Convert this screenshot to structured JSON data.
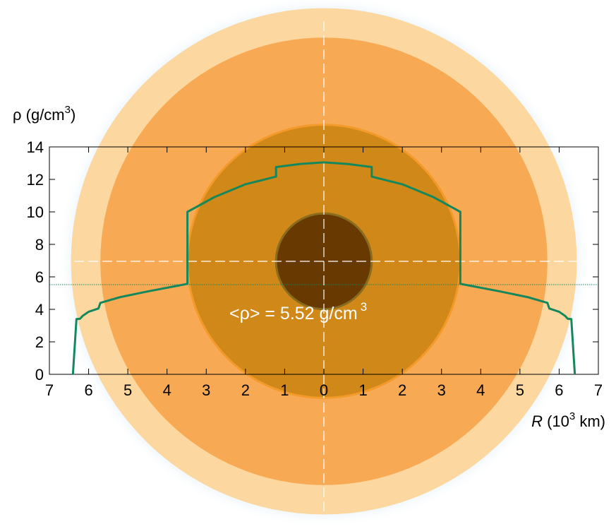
{
  "chart_data": {
    "type": "line",
    "y_label": "ρ (g/cm",
    "y_label_sup": "3",
    "y_label_end": ")",
    "x_label_var": "R",
    "x_label": " (10",
    "x_label_sup": "3",
    "x_label_end": " km)",
    "annotation": "<ρ> = 5.52 g/cm",
    "annotation_sup": "3",
    "mean_density": 5.52,
    "layers": [
      {
        "radius": 6.45,
        "color": "#fcd79f"
      },
      {
        "radius": 5.7,
        "color": "#f7a954"
      },
      {
        "radius": 3.48,
        "color": "#d08818"
      },
      {
        "radius": 1.22,
        "color": "#683a02"
      }
    ],
    "series": [
      {
        "color": "#14885c",
        "x": [
          0,
          0.6,
          1.22,
          1.22,
          2.0,
          2.8,
          3.48,
          3.48,
          4.5,
          5.2,
          5.7,
          5.75,
          6.0,
          6.15,
          6.22,
          6.31,
          6.4
        ],
        "values": [
          13.05,
          12.95,
          12.76,
          12.17,
          11.7,
          10.9,
          10.0,
          5.57,
          5.1,
          4.75,
          4.4,
          4.05,
          3.85,
          3.6,
          3.42,
          3.4,
          0
        ]
      }
    ],
    "xlim": [
      -7,
      7
    ],
    "xticks": [
      {
        "value": -7,
        "label": "7"
      },
      {
        "value": -6,
        "label": "6"
      },
      {
        "value": -5,
        "label": "5"
      },
      {
        "value": -4,
        "label": "4"
      },
      {
        "value": -3,
        "label": "3"
      },
      {
        "value": -2,
        "label": "2"
      },
      {
        "value": -1,
        "label": "1"
      },
      0,
      1,
      2,
      3,
      4,
      5,
      6,
      7
    ],
    "ylim": [
      0,
      14
    ],
    "yticks": [
      0,
      2,
      4,
      6,
      8,
      10,
      12,
      14
    ]
  }
}
